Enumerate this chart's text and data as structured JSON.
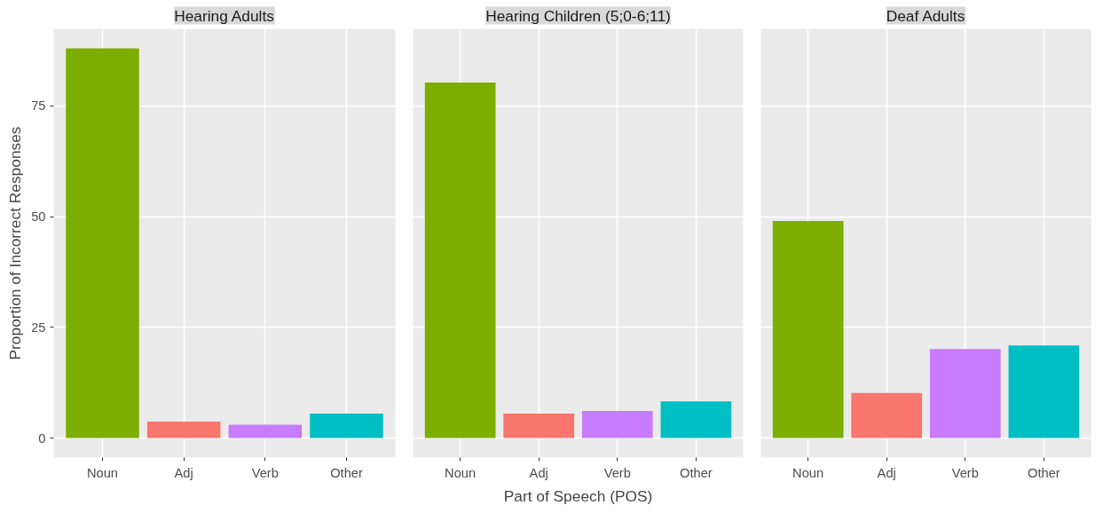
{
  "chart_data": [
    {
      "type": "bar",
      "title": "Hearing Adults",
      "ylabel": "Proportion of Incorrect Responses",
      "categories": [
        "Noun",
        "Adj",
        "Verb",
        "Other"
      ],
      "values": [
        88.0,
        3.7,
        3.0,
        5.5
      ],
      "colors": [
        "#7cae00",
        "#f8766d",
        "#c77cff",
        "#00bfc4"
      ],
      "ylim": [
        -4.4,
        92.4
      ],
      "yticks": [
        0,
        25,
        50,
        75
      ],
      "grid": true
    },
    {
      "type": "bar",
      "title": "Hearing Children (5;0-6;11)",
      "xlabel": "Part of Speech (POS)",
      "categories": [
        "Noun",
        "Adj",
        "Verb",
        "Other"
      ],
      "values": [
        80.3,
        5.5,
        6.1,
        8.3
      ],
      "colors": [
        "#7cae00",
        "#f8766d",
        "#c77cff",
        "#00bfc4"
      ],
      "ylim": [
        -4.4,
        92.4
      ],
      "yticks": [
        0,
        25,
        50,
        75
      ],
      "grid": true,
      "tick_labels": "x"
    },
    {
      "type": "bar",
      "title": "Deaf Adults",
      "categories": [
        "Noun",
        "Adj",
        "Verb",
        "Other"
      ],
      "values": [
        49.0,
        10.2,
        20.1,
        20.9
      ],
      "colors": [
        "#7cae00",
        "#f8766d",
        "#c77cff",
        "#00bfc4"
      ],
      "ylim": [
        -4.4,
        92.4
      ],
      "yticks": [
        0,
        25,
        50,
        75
      ],
      "grid": true,
      "tick_labels": "x"
    }
  ]
}
